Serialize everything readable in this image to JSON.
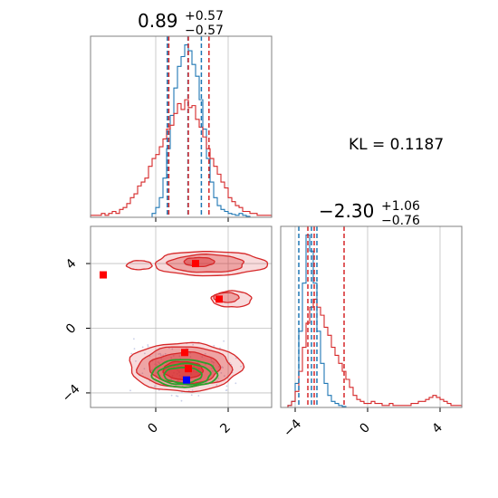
{
  "colors": {
    "blue": "#1f77b4",
    "red": "#d62728",
    "green": "#2ca02c",
    "marker_blue": "#0000ff",
    "marker_red": "#ff0000",
    "grid": "#bfbfbf",
    "frame": "#808080"
  },
  "kl_text": "KL = 0.1187",
  "chart_data": [
    {
      "type": "histogram",
      "panel": "top-left",
      "title": {
        "main": "0.89",
        "plus": "+0.57",
        "minus": "−0.57"
      },
      "xlim": [
        -1.8,
        3.2
      ],
      "grid": true,
      "x_ticks": [
        0,
        2
      ],
      "bins": [
        -1.8,
        -1.7,
        -1.6,
        -1.5,
        -1.4,
        -1.3,
        -1.2,
        -1.1,
        -1.0,
        -0.9,
        -0.8,
        -0.7,
        -0.6,
        -0.5,
        -0.4,
        -0.3,
        -0.2,
        -0.1,
        0.0,
        0.1,
        0.2,
        0.3,
        0.4,
        0.5,
        0.6,
        0.7,
        0.8,
        0.9,
        1.0,
        1.1,
        1.2,
        1.3,
        1.4,
        1.5,
        1.6,
        1.7,
        1.8,
        1.9,
        2.0,
        2.1,
        2.2,
        2.3,
        2.4,
        2.5,
        2.6,
        2.7,
        2.8,
        2.9,
        3.0,
        3.1,
        3.2
      ],
      "series": [
        {
          "color": "blue",
          "counts": [
            0,
            0,
            0,
            0,
            0,
            0,
            0,
            0,
            0,
            0,
            0,
            0,
            0,
            0,
            0,
            0,
            0,
            0.02,
            0.05,
            0.1,
            0.2,
            0.35,
            0.52,
            0.66,
            0.77,
            0.82,
            0.88,
            0.85,
            0.78,
            0.72,
            0.6,
            0.45,
            0.3,
            0.18,
            0.1,
            0.06,
            0.04,
            0.03,
            0.02,
            0.015,
            0.01,
            0.02,
            0.01,
            0.005,
            0,
            0,
            0,
            0,
            0,
            0
          ]
        },
        {
          "color": "red",
          "counts": [
            0.01,
            0.01,
            0.01,
            0.02,
            0.01,
            0.02,
            0.03,
            0.02,
            0.04,
            0.05,
            0.07,
            0.1,
            0.12,
            0.16,
            0.18,
            0.2,
            0.26,
            0.3,
            0.32,
            0.36,
            0.4,
            0.45,
            0.47,
            0.53,
            0.58,
            0.55,
            0.6,
            0.56,
            0.57,
            0.5,
            0.46,
            0.41,
            0.35,
            0.3,
            0.26,
            0.22,
            0.18,
            0.15,
            0.1,
            0.08,
            0.06,
            0.05,
            0.03,
            0.03,
            0.02,
            0.02,
            0.01,
            0.01,
            0.01,
            0.01
          ]
        }
      ],
      "quantiles": [
        {
          "color": "blue",
          "values": [
            0.32,
            0.89,
            1.26
          ]
        },
        {
          "color": "red",
          "values": [
            0.36,
            0.9,
            1.47
          ]
        }
      ]
    },
    {
      "type": "histogram",
      "panel": "bottom-right",
      "title": {
        "main": "−2.30",
        "plus": "+1.06",
        "minus": "−0.76"
      },
      "xlim": [
        -4.8,
        5.2
      ],
      "grid": true,
      "x_ticks": [
        -4,
        0,
        4
      ],
      "bins": [
        -4.8,
        -4.6,
        -4.4,
        -4.2,
        -4.0,
        -3.8,
        -3.6,
        -3.4,
        -3.2,
        -3.0,
        -2.8,
        -2.6,
        -2.4,
        -2.2,
        -2.0,
        -1.8,
        -1.6,
        -1.4,
        -1.2,
        -1.0,
        -0.8,
        -0.6,
        -0.4,
        -0.2,
        0.0,
        0.2,
        0.4,
        0.6,
        0.8,
        1.0,
        1.2,
        1.4,
        1.6,
        1.8,
        2.0,
        2.2,
        2.4,
        2.6,
        2.8,
        3.0,
        3.2,
        3.4,
        3.6,
        3.8,
        4.0,
        4.2,
        4.4,
        4.6,
        4.8,
        5.0,
        5.2
      ],
      "series": [
        {
          "color": "blue",
          "counts": [
            0,
            0,
            0.01,
            0.03,
            0.12,
            0.38,
            0.62,
            0.86,
            0.78,
            0.62,
            0.38,
            0.22,
            0.12,
            0.06,
            0.03,
            0.02,
            0.01,
            0.005,
            0,
            0,
            0,
            0,
            0,
            0,
            0,
            0,
            0,
            0,
            0,
            0,
            0,
            0,
            0,
            0,
            0,
            0,
            0,
            0,
            0,
            0,
            0,
            0,
            0,
            0,
            0,
            0,
            0,
            0,
            0,
            0
          ]
        },
        {
          "color": "red",
          "counts": [
            0,
            0,
            0.01,
            0.03,
            0.08,
            0.18,
            0.3,
            0.42,
            0.5,
            0.54,
            0.5,
            0.46,
            0.4,
            0.36,
            0.3,
            0.26,
            0.22,
            0.18,
            0.14,
            0.1,
            0.06,
            0.04,
            0.03,
            0.02,
            0.02,
            0.03,
            0.02,
            0.02,
            0.01,
            0.01,
            0.02,
            0.01,
            0.01,
            0.01,
            0.01,
            0.01,
            0.02,
            0.02,
            0.03,
            0.03,
            0.04,
            0.05,
            0.06,
            0.05,
            0.04,
            0.03,
            0.02,
            0.01,
            0.01,
            0.01
          ]
        }
      ],
      "quantiles": [
        {
          "color": "blue",
          "values": [
            -3.8,
            -3.1,
            -2.8
          ]
        },
        {
          "color": "red",
          "values": [
            -3.3,
            -2.95,
            -1.3
          ]
        }
      ]
    },
    {
      "type": "contour",
      "panel": "bottom-left",
      "xlim": [
        -1.8,
        3.2
      ],
      "ylim": [
        -4.9,
        6.3
      ],
      "grid": true,
      "x_ticks": [
        0,
        2
      ],
      "y_ticks": [
        -4,
        0,
        4
      ],
      "red_levels": [
        {
          "opacity": 0.3,
          "blobs": [
            {
              "cx": 0.8,
              "cy": -2.4,
              "rx": 1.55,
              "ry": 1.5
            },
            {
              "cx": 1.5,
              "cy": 4.0,
              "rx": 1.55,
              "ry": 0.75
            },
            {
              "cx": -0.45,
              "cy": 3.9,
              "rx": 0.35,
              "ry": 0.28
            },
            {
              "cx": 2.1,
              "cy": 1.8,
              "rx": 0.55,
              "ry": 0.5
            }
          ]
        },
        {
          "opacity": 0.55,
          "blobs": [
            {
              "cx": 0.8,
              "cy": -2.4,
              "rx": 1.3,
              "ry": 1.25
            },
            {
              "cx": 1.4,
              "cy": 4.0,
              "rx": 1.05,
              "ry": 0.55
            },
            {
              "cx": 1.95,
              "cy": 1.9,
              "rx": 0.35,
              "ry": 0.3
            }
          ]
        },
        {
          "opacity": 0.8,
          "blobs": [
            {
              "cx": 0.8,
              "cy": -2.45,
              "rx": 0.98,
              "ry": 0.95
            },
            {
              "cx": 1.2,
              "cy": 4.1,
              "rx": 0.42,
              "ry": 0.28
            }
          ]
        },
        {
          "opacity": 0.95,
          "blobs": [
            {
              "cx": 0.75,
              "cy": -2.6,
              "rx": 0.55,
              "ry": 0.55
            }
          ]
        }
      ],
      "green_levels": [
        {
          "cx": 0.8,
          "cy": -2.8,
          "rx": 0.9,
          "ry": 0.85
        },
        {
          "cx": 0.8,
          "cy": -2.85,
          "rx": 0.72,
          "ry": 0.65
        },
        {
          "cx": 0.75,
          "cy": -2.9,
          "rx": 0.52,
          "ry": 0.48
        }
      ],
      "blue_markers": [
        {
          "x": 0.85,
          "y": -3.2
        }
      ],
      "red_markers": [
        {
          "x": -1.45,
          "y": 3.3
        },
        {
          "x": 1.1,
          "y": 4.0
        },
        {
          "x": 1.75,
          "y": 1.8
        },
        {
          "x": 0.8,
          "y": -1.5
        },
        {
          "x": 0.9,
          "y": -2.5
        }
      ]
    }
  ]
}
